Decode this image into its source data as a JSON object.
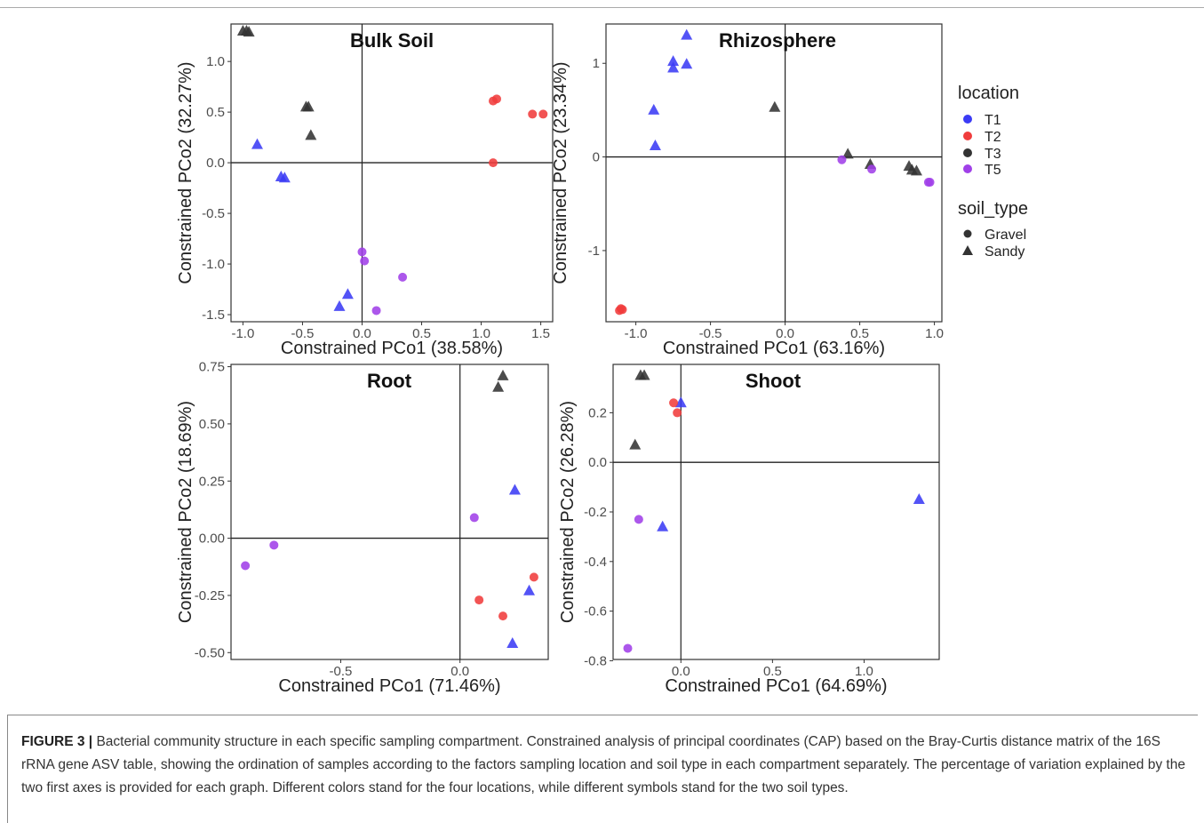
{
  "legend": {
    "location_title": "location",
    "location_items": [
      {
        "label": "T1",
        "color": "#3b3bf5"
      },
      {
        "label": "T2",
        "color": "#f03c3c"
      },
      {
        "label": "T3",
        "color": "#333333"
      },
      {
        "label": "T5",
        "color": "#a040e8"
      }
    ],
    "soil_title": "soil_type",
    "soil_items": [
      {
        "label": "Gravel",
        "shape": "circle"
      },
      {
        "label": "Sandy",
        "shape": "triangle"
      }
    ]
  },
  "caption": {
    "label": "FIGURE 3 |",
    "text": " Bacterial community structure in each specific sampling compartment. Constrained analysis of principal coordinates (CAP) based on the Bray-Curtis distance matrix of the 16S rRNA gene ASV table, showing the ordination of samples according to the factors sampling location and soil type in each compartment separately. The percentage of variation explained by the two first axes is provided for each graph. Different colors stand for the four locations, while different symbols stand for the two soil types."
  },
  "chart_data": [
    {
      "type": "scatter",
      "title": "Bulk Soil",
      "xlabel": "Constrained PCo1 (38.58%)",
      "ylabel": "Constrained PCo2 (32.27%)",
      "xlim": [
        -1.1,
        1.6
      ],
      "ylim": [
        -1.57,
        1.37
      ],
      "xticks": [
        -1.0,
        -0.5,
        0.0,
        0.5,
        1.0,
        1.5
      ],
      "xtick_labels": [
        "-1.0",
        "-0.5",
        "0.0",
        "0.5",
        "1.0",
        "1.5"
      ],
      "yticks": [
        -1.5,
        -1.0,
        -0.5,
        0.0,
        0.5,
        1.0
      ],
      "ytick_labels": [
        "-1.5",
        "-1.0",
        "-0.5",
        "0.0",
        "0.5",
        "1.0"
      ],
      "points": [
        {
          "x": -1.0,
          "y": 1.3,
          "loc": "T3",
          "soil": "Sandy"
        },
        {
          "x": -0.97,
          "y": 1.3,
          "loc": "T3",
          "soil": "Sandy"
        },
        {
          "x": -0.95,
          "y": 1.29,
          "loc": "T3",
          "soil": "Sandy"
        },
        {
          "x": -0.47,
          "y": 0.55,
          "loc": "T3",
          "soil": "Sandy"
        },
        {
          "x": -0.45,
          "y": 0.55,
          "loc": "T3",
          "soil": "Sandy"
        },
        {
          "x": -0.43,
          "y": 0.27,
          "loc": "T3",
          "soil": "Sandy"
        },
        {
          "x": -0.88,
          "y": 0.18,
          "loc": "T1",
          "soil": "Sandy"
        },
        {
          "x": -0.68,
          "y": -0.14,
          "loc": "T1",
          "soil": "Sandy"
        },
        {
          "x": -0.65,
          "y": -0.15,
          "loc": "T1",
          "soil": "Sandy"
        },
        {
          "x": -0.12,
          "y": -1.3,
          "loc": "T1",
          "soil": "Sandy"
        },
        {
          "x": -0.19,
          "y": -1.42,
          "loc": "T1",
          "soil": "Sandy"
        },
        {
          "x": 1.1,
          "y": 0.61,
          "loc": "T2",
          "soil": "Gravel"
        },
        {
          "x": 1.13,
          "y": 0.63,
          "loc": "T2",
          "soil": "Gravel"
        },
        {
          "x": 1.43,
          "y": 0.48,
          "loc": "T2",
          "soil": "Gravel"
        },
        {
          "x": 1.52,
          "y": 0.48,
          "loc": "T2",
          "soil": "Gravel"
        },
        {
          "x": 1.1,
          "y": 0.0,
          "loc": "T2",
          "soil": "Gravel"
        },
        {
          "x": 0.0,
          "y": -0.88,
          "loc": "T5",
          "soil": "Gravel"
        },
        {
          "x": 0.02,
          "y": -0.97,
          "loc": "T5",
          "soil": "Gravel"
        },
        {
          "x": 0.34,
          "y": -1.13,
          "loc": "T5",
          "soil": "Gravel"
        },
        {
          "x": 0.12,
          "y": -1.46,
          "loc": "T5",
          "soil": "Gravel"
        }
      ]
    },
    {
      "type": "scatter",
      "title": "Rhizosphere",
      "xlabel": "Constrained PCo1 (63.16%)",
      "ylabel": "Constrained PCo2 (23.34%)",
      "xlim": [
        -1.2,
        1.05
      ],
      "ylim": [
        -1.76,
        1.42
      ],
      "xticks": [
        -1.0,
        -0.5,
        0.0,
        0.5,
        1.0
      ],
      "xtick_labels": [
        "-1.0",
        "-0.5",
        "0.0",
        "0.5",
        "1.0"
      ],
      "yticks": [
        -1,
        0,
        1
      ],
      "ytick_labels": [
        "-1",
        "0",
        "1"
      ],
      "points": [
        {
          "x": -0.66,
          "y": 1.3,
          "loc": "T1",
          "soil": "Sandy"
        },
        {
          "x": -0.75,
          "y": 1.02,
          "loc": "T1",
          "soil": "Sandy"
        },
        {
          "x": -0.75,
          "y": 0.95,
          "loc": "T1",
          "soil": "Sandy"
        },
        {
          "x": -0.66,
          "y": 0.99,
          "loc": "T1",
          "soil": "Sandy"
        },
        {
          "x": -0.88,
          "y": 0.5,
          "loc": "T1",
          "soil": "Sandy"
        },
        {
          "x": -0.87,
          "y": 0.12,
          "loc": "T1",
          "soil": "Sandy"
        },
        {
          "x": -0.07,
          "y": 0.53,
          "loc": "T3",
          "soil": "Sandy"
        },
        {
          "x": 0.42,
          "y": 0.03,
          "loc": "T3",
          "soil": "Sandy"
        },
        {
          "x": 0.57,
          "y": -0.08,
          "loc": "T3",
          "soil": "Sandy"
        },
        {
          "x": 0.83,
          "y": -0.1,
          "loc": "T3",
          "soil": "Sandy"
        },
        {
          "x": 0.85,
          "y": -0.14,
          "loc": "T3",
          "soil": "Sandy"
        },
        {
          "x": 0.88,
          "y": -0.15,
          "loc": "T3",
          "soil": "Sandy"
        },
        {
          "x": 0.38,
          "y": -0.03,
          "loc": "T5",
          "soil": "Gravel"
        },
        {
          "x": 0.58,
          "y": -0.13,
          "loc": "T5",
          "soil": "Gravel"
        },
        {
          "x": 0.96,
          "y": -0.27,
          "loc": "T5",
          "soil": "Gravel"
        },
        {
          "x": 0.97,
          "y": -0.27,
          "loc": "T5",
          "soil": "Gravel"
        },
        {
          "x": -1.1,
          "y": -1.62,
          "loc": "T2",
          "soil": "Gravel"
        },
        {
          "x": -1.09,
          "y": -1.63,
          "loc": "T2",
          "soil": "Gravel"
        },
        {
          "x": -1.11,
          "y": -1.64,
          "loc": "T2",
          "soil": "Gravel"
        }
      ]
    },
    {
      "type": "scatter",
      "title": "Root",
      "xlabel": "Constrained PCo1 (71.46%)",
      "ylabel": "Constrained PCo2 (18.69%)",
      "xlim": [
        -0.96,
        0.37
      ],
      "ylim": [
        -0.53,
        0.76
      ],
      "xticks": [
        -0.5,
        0.0
      ],
      "xtick_labels": [
        "-0.5",
        "0.0"
      ],
      "yticks": [
        -0.5,
        -0.25,
        0.0,
        0.25,
        0.5,
        0.75
      ],
      "ytick_labels": [
        "-0.50",
        "-0.25",
        "0.00",
        "0.25",
        "0.50",
        "0.75"
      ],
      "points": [
        {
          "x": 0.18,
          "y": 0.71,
          "loc": "T3",
          "soil": "Sandy"
        },
        {
          "x": 0.16,
          "y": 0.66,
          "loc": "T3",
          "soil": "Sandy"
        },
        {
          "x": 0.23,
          "y": 0.21,
          "loc": "T1",
          "soil": "Sandy"
        },
        {
          "x": 0.29,
          "y": -0.23,
          "loc": "T1",
          "soil": "Sandy"
        },
        {
          "x": 0.22,
          "y": -0.46,
          "loc": "T1",
          "soil": "Sandy"
        },
        {
          "x": 0.06,
          "y": 0.09,
          "loc": "T5",
          "soil": "Gravel"
        },
        {
          "x": -0.78,
          "y": -0.03,
          "loc": "T5",
          "soil": "Gravel"
        },
        {
          "x": -0.9,
          "y": -0.12,
          "loc": "T5",
          "soil": "Gravel"
        },
        {
          "x": 0.31,
          "y": -0.17,
          "loc": "T2",
          "soil": "Gravel"
        },
        {
          "x": 0.08,
          "y": -0.27,
          "loc": "T2",
          "soil": "Gravel"
        },
        {
          "x": 0.18,
          "y": -0.34,
          "loc": "T2",
          "soil": "Gravel"
        }
      ]
    },
    {
      "type": "scatter",
      "title": "Shoot",
      "xlabel": "Constrained PCo1 (64.69%)",
      "ylabel": "Constrained PCo2 (26.28%)",
      "xlim": [
        -0.37,
        1.41
      ],
      "ylim": [
        -0.795,
        0.395
      ],
      "xticks": [
        0.0,
        0.5,
        1.0
      ],
      "xtick_labels": [
        "0.0",
        "0.5",
        "1.0"
      ],
      "yticks": [
        -0.8,
        -0.6,
        -0.4,
        -0.2,
        0.0,
        0.2
      ],
      "ytick_labels": [
        "-0.8",
        "-0.6",
        "-0.4",
        "-0.2",
        "0.0",
        "0.2"
      ],
      "points": [
        {
          "x": -0.22,
          "y": 0.35,
          "loc": "T3",
          "soil": "Sandy"
        },
        {
          "x": -0.2,
          "y": 0.35,
          "loc": "T3",
          "soil": "Sandy"
        },
        {
          "x": -0.25,
          "y": 0.07,
          "loc": "T3",
          "soil": "Sandy"
        },
        {
          "x": 0.0,
          "y": 0.24,
          "loc": "T1",
          "soil": "Sandy"
        },
        {
          "x": -0.1,
          "y": -0.26,
          "loc": "T1",
          "soil": "Sandy"
        },
        {
          "x": 1.3,
          "y": -0.15,
          "loc": "T1",
          "soil": "Sandy"
        },
        {
          "x": -0.04,
          "y": 0.24,
          "loc": "T2",
          "soil": "Gravel"
        },
        {
          "x": -0.02,
          "y": 0.2,
          "loc": "T2",
          "soil": "Gravel"
        },
        {
          "x": -0.23,
          "y": -0.23,
          "loc": "T5",
          "soil": "Gravel"
        },
        {
          "x": -0.29,
          "y": -0.75,
          "loc": "T5",
          "soil": "Gravel"
        }
      ]
    }
  ]
}
